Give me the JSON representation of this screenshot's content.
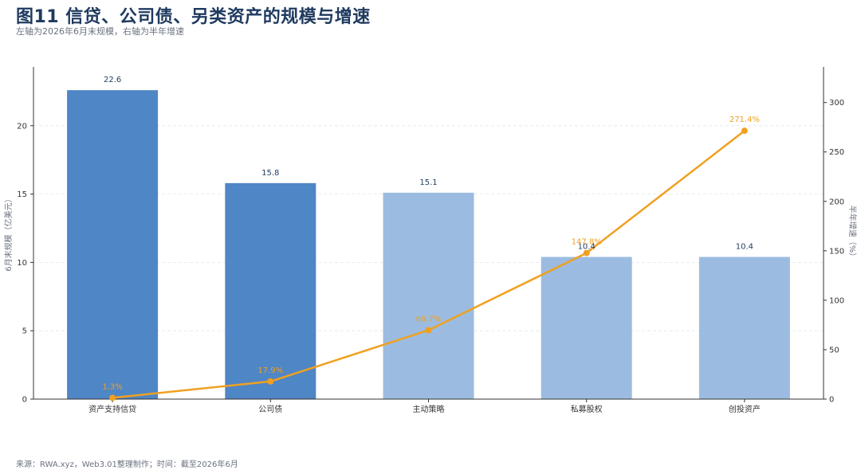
{
  "header": {
    "title": "图11 信贷、公司债、另类资产的规模与增速",
    "subtitle": "左轴为2026年6月末规模，右轴为半年增速"
  },
  "footer": {
    "source": "来源：RWA.xyz，Web3.01整理制作；时间：截至2026年6月"
  },
  "chart_data": {
    "type": "bar",
    "categories": [
      "资产支持信贷",
      "公司债",
      "主动策略",
      "私募股权",
      "创投资产"
    ],
    "series": [
      {
        "axis": "left",
        "type": "bar",
        "values": [
          22.6,
          15.8,
          15.1,
          10.4,
          10.4
        ],
        "labels": [
          "22.6",
          "15.8",
          "15.1",
          "10.4",
          "10.4"
        ],
        "colors": [
          "#4f86c6",
          "#4f86c6",
          "#9bbce0",
          "#9bbce0",
          "#9bbce0"
        ]
      },
      {
        "axis": "right",
        "type": "line",
        "values": [
          1.3,
          17.9,
          69.7,
          147.8,
          271.4
        ],
        "labels": [
          "1.3%",
          "17.9%",
          "69.7%",
          "147.8%",
          "271.4%"
        ],
        "color": "#f0a020"
      }
    ],
    "ylabel": "6月末规模（亿美元）",
    "y2label": "半年增速（%）",
    "ylim": [
      0,
      24.3
    ],
    "y2lim": [
      0,
      336
    ],
    "yticks": [
      0,
      5,
      10,
      15,
      20
    ],
    "y2ticks": [
      0,
      50,
      100,
      150,
      200,
      250,
      300
    ],
    "grid": true
  }
}
